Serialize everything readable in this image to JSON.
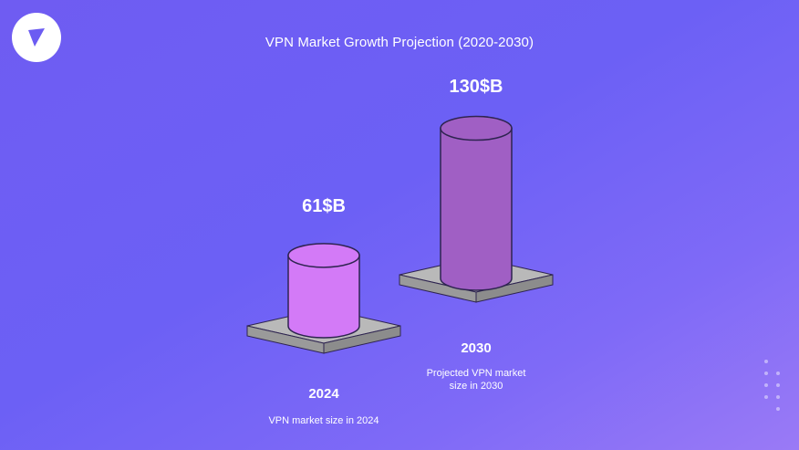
{
  "chart_data": {
    "type": "bar",
    "title": "VPN Market Growth Projection (2020-2030)",
    "categories": [
      "2024",
      "2030"
    ],
    "values": [
      61,
      130
    ],
    "value_labels": [
      "61$B",
      "130$B"
    ],
    "descriptions": [
      "VPN market size in 2024",
      "Projected VPN market size in 2030"
    ],
    "unit": "$B",
    "grid": false,
    "legend": "none"
  },
  "colors": {
    "background": "#6c60f5",
    "bar_2024": "#d37af7",
    "bar_2030": "#a05fc4",
    "pedestal": "#b4b4b4",
    "text": "#ffffff"
  },
  "logo": {
    "icon": "arrow-play-icon"
  }
}
